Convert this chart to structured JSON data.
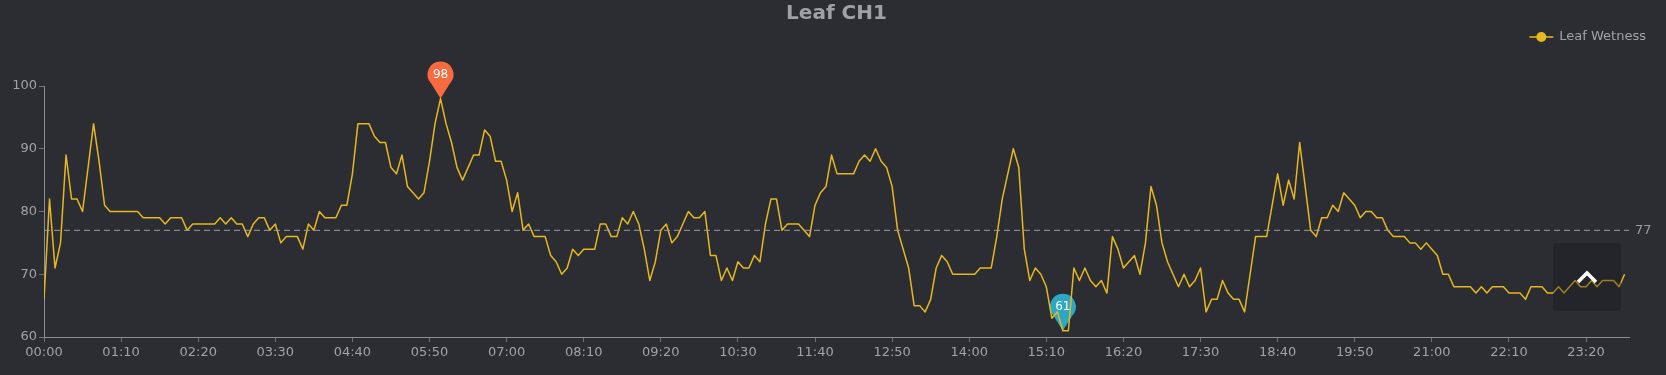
{
  "chart_data": {
    "type": "line",
    "title": "Leaf CH1",
    "xlim": [
      0,
      23.9833
    ],
    "xticks": [
      {
        "value": 0,
        "label": "00:00"
      },
      {
        "value": 1.1667,
        "label": "01:10"
      },
      {
        "value": 2.3333,
        "label": "02:20"
      },
      {
        "value": 3.5,
        "label": "03:30"
      },
      {
        "value": 4.6667,
        "label": "04:40"
      },
      {
        "value": 5.8333,
        "label": "05:50"
      },
      {
        "value": 7,
        "label": "07:00"
      },
      {
        "value": 8.1667,
        "label": "08:10"
      },
      {
        "value": 9.3333,
        "label": "09:20"
      },
      {
        "value": 10.5,
        "label": "10:30"
      },
      {
        "value": 11.6667,
        "label": "11:40"
      },
      {
        "value": 12.8333,
        "label": "12:50"
      },
      {
        "value": 14,
        "label": "14:00"
      },
      {
        "value": 15.1667,
        "label": "15:10"
      },
      {
        "value": 16.3333,
        "label": "16:20"
      },
      {
        "value": 17.5,
        "label": "17:30"
      },
      {
        "value": 18.6667,
        "label": "18:40"
      },
      {
        "value": 19.8333,
        "label": "19:50"
      },
      {
        "value": 21,
        "label": "21:00"
      },
      {
        "value": 22.1667,
        "label": "22:10"
      },
      {
        "value": 23.3333,
        "label": "23:20"
      }
    ],
    "ylim": [
      60,
      100
    ],
    "yticks": [
      60,
      70,
      80,
      90,
      100
    ],
    "grid": false,
    "legend": "top right",
    "marker": "none",
    "line_style": "solid",
    "x": [
      0,
      0.0833,
      0.1667,
      0.25,
      0.3333,
      0.4167,
      0.5,
      0.5833,
      0.75,
      0.8333,
      0.9167,
      1,
      1.4167,
      1.5,
      1.75,
      1.8333,
      1.9167,
      2.0833,
      2.1667,
      2.25,
      2.5833,
      2.6667,
      2.75,
      2.8333,
      2.9167,
      3,
      3.0833,
      3.1667,
      3.25,
      3.3333,
      3.4167,
      3.5,
      3.5833,
      3.6667,
      3.8333,
      3.9167,
      4,
      4.0833,
      4.1667,
      4.25,
      4.4167,
      4.5,
      4.5833,
      4.6667,
      4.75,
      4.9167,
      5,
      5.0833,
      5.1667,
      5.25,
      5.3333,
      5.4167,
      5.5,
      5.6667,
      5.75,
      5.8333,
      5.9167,
      6,
      6.0833,
      6.1667,
      6.25,
      6.3333,
      6.4167,
      6.5,
      6.5833,
      6.6667,
      6.75,
      6.8333,
      6.9167,
      7,
      7.0833,
      7.1667,
      7.25,
      7.3333,
      7.4167,
      7.5833,
      7.6667,
      7.75,
      7.8333,
      7.9167,
      8,
      8.0833,
      8.1667,
      8.3333,
      8.4167,
      8.5,
      8.5833,
      8.6667,
      8.75,
      8.8333,
      8.9167,
      9,
      9.0833,
      9.1667,
      9.25,
      9.3333,
      9.4167,
      9.5,
      9.5833,
      9.6667,
      9.75,
      9.8333,
      9.9167,
      10,
      10.0833,
      10.1667,
      10.25,
      10.3333,
      10.4167,
      10.5,
      10.5833,
      10.6667,
      10.75,
      10.8333,
      10.9167,
      11,
      11.0833,
      11.1667,
      11.25,
      11.4167,
      11.5833,
      11.6667,
      11.75,
      11.8333,
      11.9167,
      12,
      12.25,
      12.3333,
      12.4167,
      12.5,
      12.5833,
      12.6667,
      12.75,
      12.8333,
      12.9167,
      13,
      13.0833,
      13.1667,
      13.25,
      13.3333,
      13.4167,
      13.5,
      13.5833,
      13.6667,
      13.75,
      14.0833,
      14.1667,
      14.3333,
      14.4167,
      14.5,
      14.5833,
      14.6667,
      14.75,
      14.8333,
      14.9167,
      15,
      15.0833,
      15.1667,
      15.25,
      15.3333,
      15.4167,
      15.5,
      15.5833,
      15.6667,
      15.75,
      15.8333,
      15.9167,
      16,
      16.0833,
      16.1667,
      16.25,
      16.3333,
      16.4167,
      16.5,
      16.5833,
      16.6667,
      16.75,
      16.8333,
      16.9167,
      17,
      17.0833,
      17.1667,
      17.25,
      17.3333,
      17.4167,
      17.5,
      17.5833,
      17.6667,
      17.75,
      17.8333,
      17.9167,
      18,
      18.0833,
      18.1667,
      18.3333,
      18.5,
      18.6667,
      18.75,
      18.8333,
      18.9167,
      19,
      19.0833,
      19.1667,
      19.25,
      19.3333,
      19.4167,
      19.5,
      19.5833,
      19.6667,
      19.75,
      19.8333,
      19.9167,
      20,
      20.0833,
      20.1667,
      20.25,
      20.3333,
      20.4167,
      20.5833,
      20.6667,
      20.75,
      20.8333,
      20.9167,
      21,
      21.0833,
      21.1667,
      21.25,
      21.3333,
      21.5833,
      21.6667,
      21.75,
      21.8333,
      21.9167,
      22.0833,
      22.1667,
      22.3333,
      22.4167,
      22.5,
      22.6667,
      22.75,
      22.8333,
      22.9167,
      23,
      23.1667,
      23.25,
      23.3333,
      23.4167,
      23.5,
      23.5833,
      23.75,
      23.8333,
      23.9167
    ],
    "series": [
      {
        "name": "Leaf Wetness",
        "color": "#e5b81f",
        "values": [
          66,
          82,
          71,
          75,
          89,
          82,
          82,
          80,
          94,
          88,
          81,
          80,
          80,
          79,
          79,
          78,
          79,
          79,
          77,
          78,
          78,
          79,
          78,
          79,
          78,
          78,
          76,
          78,
          79,
          79,
          77,
          78,
          75,
          76,
          76,
          74,
          78,
          77,
          80,
          79,
          79,
          81,
          81,
          86,
          94,
          94,
          92,
          91,
          91,
          87,
          86,
          89,
          84,
          82,
          83,
          88,
          94,
          98,
          94,
          91,
          87,
          85,
          87,
          89,
          89,
          93,
          92,
          88,
          88,
          85,
          80,
          83,
          77,
          78,
          76,
          76,
          73,
          72,
          70,
          71,
          74,
          73,
          74,
          74,
          78,
          78,
          76,
          76,
          79,
          78,
          80,
          78,
          74,
          69,
          72,
          77,
          78,
          75,
          76,
          78,
          80,
          79,
          79,
          80,
          73,
          73,
          69,
          71,
          69,
          72,
          71,
          71,
          73,
          72,
          78,
          82,
          82,
          77,
          78,
          78,
          76,
          81,
          83,
          84,
          89,
          86,
          86,
          88,
          89,
          88,
          90,
          88,
          87,
          84,
          77,
          74,
          71,
          65,
          65,
          64,
          66,
          71,
          73,
          72,
          70,
          70,
          71,
          71,
          76,
          82,
          86,
          90,
          87,
          74,
          69,
          71,
          70,
          68,
          63,
          64,
          61,
          61,
          71,
          69,
          71,
          69,
          68,
          69,
          67,
          76,
          74,
          71,
          72,
          73,
          70,
          75,
          84,
          81,
          75,
          72,
          70,
          68,
          70,
          68,
          69,
          71,
          64,
          66,
          66,
          69,
          67,
          66,
          66,
          64,
          76,
          76,
          86,
          81,
          85,
          82,
          91,
          84,
          77,
          76,
          79,
          79,
          81,
          80,
          83,
          82,
          81,
          79,
          80,
          80,
          79,
          79,
          77,
          76,
          76,
          75,
          75,
          74,
          75,
          74,
          73,
          70,
          70,
          68,
          68,
          67,
          68,
          67,
          68,
          68,
          67,
          67,
          66,
          68,
          68,
          67,
          67,
          68,
          67,
          69,
          68,
          68,
          69,
          68,
          69,
          69,
          68,
          70
        ]
      }
    ],
    "ref_lines": [
      {
        "axis": "y",
        "value": 77,
        "label": "77",
        "color": "#9a9da3",
        "line_style": "dashed"
      }
    ],
    "annotations": [
      {
        "text": "98",
        "x": 6,
        "y": 98
      },
      {
        "text": "61",
        "x": 15.4167,
        "y": 61
      }
    ]
  }
}
